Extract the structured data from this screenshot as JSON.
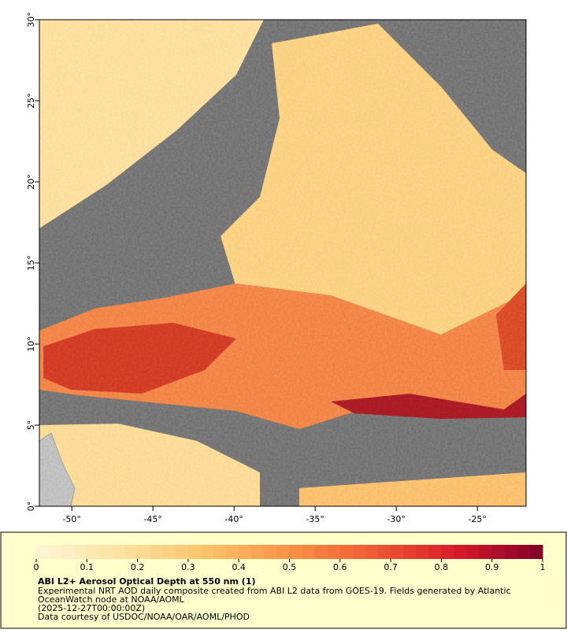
{
  "map": {
    "xlim": [
      -52,
      -22
    ],
    "ylim": [
      0,
      30
    ],
    "xticks": [
      {
        "value": -50,
        "label": "-50°"
      },
      {
        "value": -45,
        "label": "-45°"
      },
      {
        "value": -40,
        "label": "-40°"
      },
      {
        "value": -35,
        "label": "-35°"
      },
      {
        "value": -30,
        "label": "-30°"
      },
      {
        "value": -25,
        "label": "-25°"
      }
    ],
    "yticks": [
      {
        "value": 0,
        "label": "0°"
      },
      {
        "value": 5,
        "label": "5°"
      },
      {
        "value": 10,
        "label": "10°"
      },
      {
        "value": 15,
        "label": "15°"
      },
      {
        "value": 20,
        "label": "20°"
      },
      {
        "value": 25,
        "label": "25°"
      },
      {
        "value": 30,
        "label": "30°"
      }
    ]
  },
  "colorbar": {
    "range": [
      0,
      1
    ],
    "ticks": [
      0,
      0.1,
      0.2,
      0.3,
      0.4,
      0.5,
      0.6,
      0.7,
      0.8,
      0.9,
      1
    ],
    "colors": [
      "#fff5d6",
      "#fde2a0",
      "#fcc36a",
      "#f99148",
      "#ef5a33",
      "#d7192a",
      "#7f0026"
    ]
  },
  "caption": {
    "title": "ABI L2+ Aerosol Optical Depth at 550 nm (1)",
    "lines": [
      "Experimental NRT AOD daily composite created from ABI L2 data from GOES-19. Fields generated by Atlantic",
      "OceanWatch node at NOAA/AOML",
      "(2025-12-27T00:00:00Z)",
      "Data courtesy of USDOC/NOAA/OAR/AOML/PHOD"
    ]
  }
}
